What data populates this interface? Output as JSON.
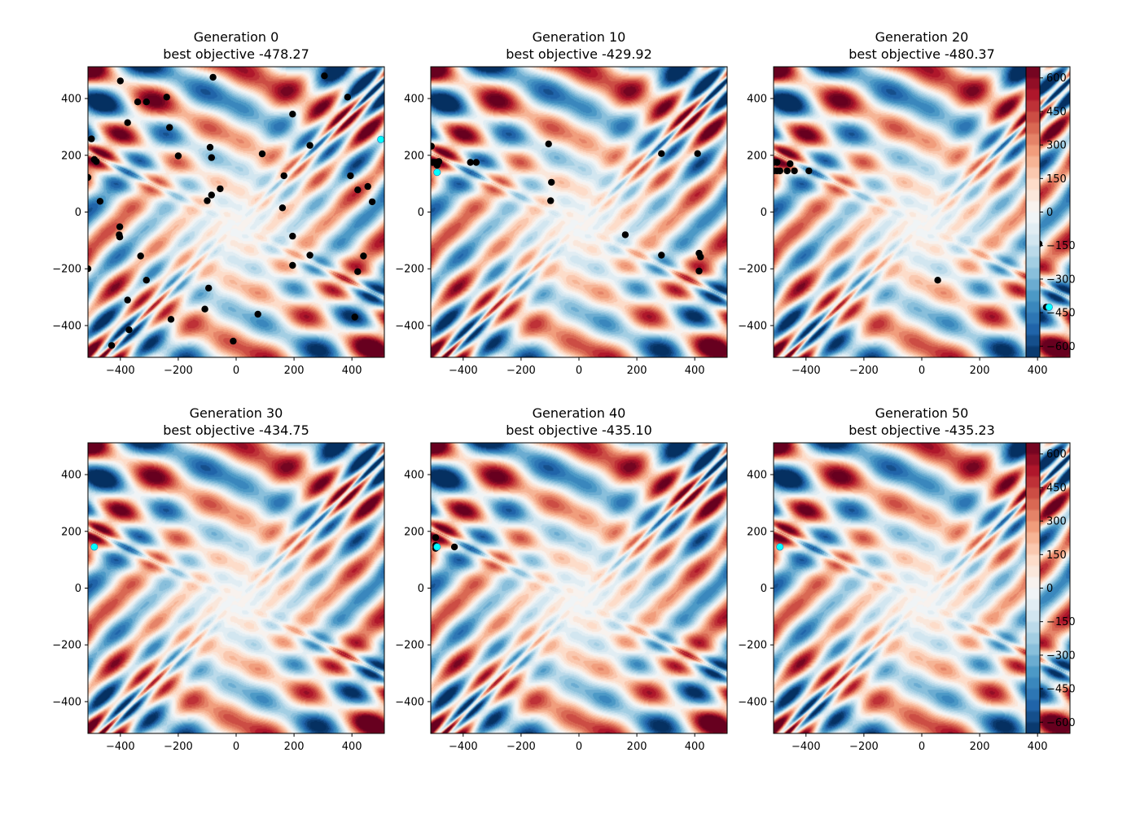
{
  "chart_data": {
    "type": "scatter",
    "description_of_background": "filled contour plot of the Eggholder function over x,y in [-512,512]",
    "colormap": "RdBu_r",
    "color_range": [
      -650,
      650
    ],
    "xlim": [
      -512,
      512
    ],
    "ylim": [
      -512,
      512
    ],
    "xticks": [
      -400,
      -200,
      0,
      200,
      400
    ],
    "yticks": [
      -400,
      -200,
      0,
      200,
      400
    ],
    "colorbar_ticks": [
      600,
      450,
      300,
      150,
      0,
      -150,
      -300,
      -450,
      -600
    ],
    "grid": false,
    "panels": [
      {
        "generation_label": "Generation 0",
        "best_label": "best objective -478.27",
        "population": [
          [
            -400,
            462
          ],
          [
            -340,
            388
          ],
          [
            -310,
            388
          ],
          [
            -240,
            405
          ],
          [
            -80,
            475
          ],
          [
            305,
            480
          ],
          [
            385,
            405
          ],
          [
            195,
            345
          ],
          [
            -375,
            315
          ],
          [
            -230,
            298
          ],
          [
            -500,
            258
          ],
          [
            -490,
            185
          ],
          [
            -483,
            178
          ],
          [
            -200,
            198
          ],
          [
            -90,
            228
          ],
          [
            -85,
            192
          ],
          [
            90,
            205
          ],
          [
            255,
            235
          ],
          [
            -512,
            122
          ],
          [
            -470,
            38
          ],
          [
            -100,
            40
          ],
          [
            -85,
            60
          ],
          [
            -55,
            82
          ],
          [
            165,
            128
          ],
          [
            395,
            128
          ],
          [
            420,
            78
          ],
          [
            455,
            90
          ],
          [
            470,
            36
          ],
          [
            160,
            15
          ],
          [
            -402,
            -52
          ],
          [
            -404,
            -80
          ],
          [
            -402,
            -88
          ],
          [
            195,
            -85
          ],
          [
            -330,
            -155
          ],
          [
            -310,
            -240
          ],
          [
            -512,
            -200
          ],
          [
            195,
            -188
          ],
          [
            255,
            -152
          ],
          [
            440,
            -155
          ],
          [
            420,
            -210
          ],
          [
            -95,
            -268
          ],
          [
            -375,
            -310
          ],
          [
            -108,
            -342
          ],
          [
            -225,
            -378
          ],
          [
            75,
            -360
          ],
          [
            410,
            -370
          ],
          [
            -370,
            -415
          ],
          [
            -430,
            -470
          ],
          [
            -10,
            -455
          ]
        ],
        "best": [
          [
            500,
            256
          ]
        ]
      },
      {
        "generation_label": "Generation 10",
        "best_label": "best objective -429.92",
        "population": [
          [
            -510,
            232
          ],
          [
            -505,
            175
          ],
          [
            -497,
            175
          ],
          [
            -490,
            175
          ],
          [
            -484,
            178
          ],
          [
            -490,
            165
          ],
          [
            -375,
            175
          ],
          [
            -355,
            175
          ],
          [
            -105,
            240
          ],
          [
            -95,
            105
          ],
          [
            -98,
            40
          ],
          [
            285,
            206
          ],
          [
            410,
            206
          ],
          [
            160,
            -80
          ],
          [
            285,
            -152
          ],
          [
            415,
            -145
          ],
          [
            420,
            -158
          ],
          [
            415,
            -208
          ]
        ],
        "best": [
          [
            -490,
            140
          ]
        ]
      },
      {
        "generation_label": "Generation 20",
        "best_label": "best objective -480.37",
        "population": [
          [
            -512,
            175
          ],
          [
            -500,
            175
          ],
          [
            -510,
            145
          ],
          [
            -490,
            145
          ],
          [
            -500,
            145
          ],
          [
            -465,
            145
          ],
          [
            -455,
            170
          ],
          [
            -440,
            145
          ],
          [
            -390,
            145
          ],
          [
            405,
            -112
          ],
          [
            55,
            -240
          ],
          [
            430,
            -335
          ]
        ],
        "best": [
          [
            440,
            -335
          ]
        ]
      },
      {
        "generation_label": "Generation 30",
        "best_label": "best objective -434.75",
        "population": [],
        "best": [
          [
            -490,
            145
          ]
        ]
      },
      {
        "generation_label": "Generation 40",
        "best_label": "best objective -435.10",
        "population": [
          [
            -495,
            178
          ],
          [
            -495,
            150
          ],
          [
            -495,
            140
          ],
          [
            -430,
            145
          ]
        ],
        "best": [
          [
            -490,
            145
          ]
        ]
      },
      {
        "generation_label": "Generation 50",
        "best_label": "best objective -435.23",
        "population": [],
        "best": [
          [
            -490,
            145
          ]
        ]
      }
    ],
    "colors": {
      "population": "#000000",
      "best": "#00ffff"
    }
  }
}
